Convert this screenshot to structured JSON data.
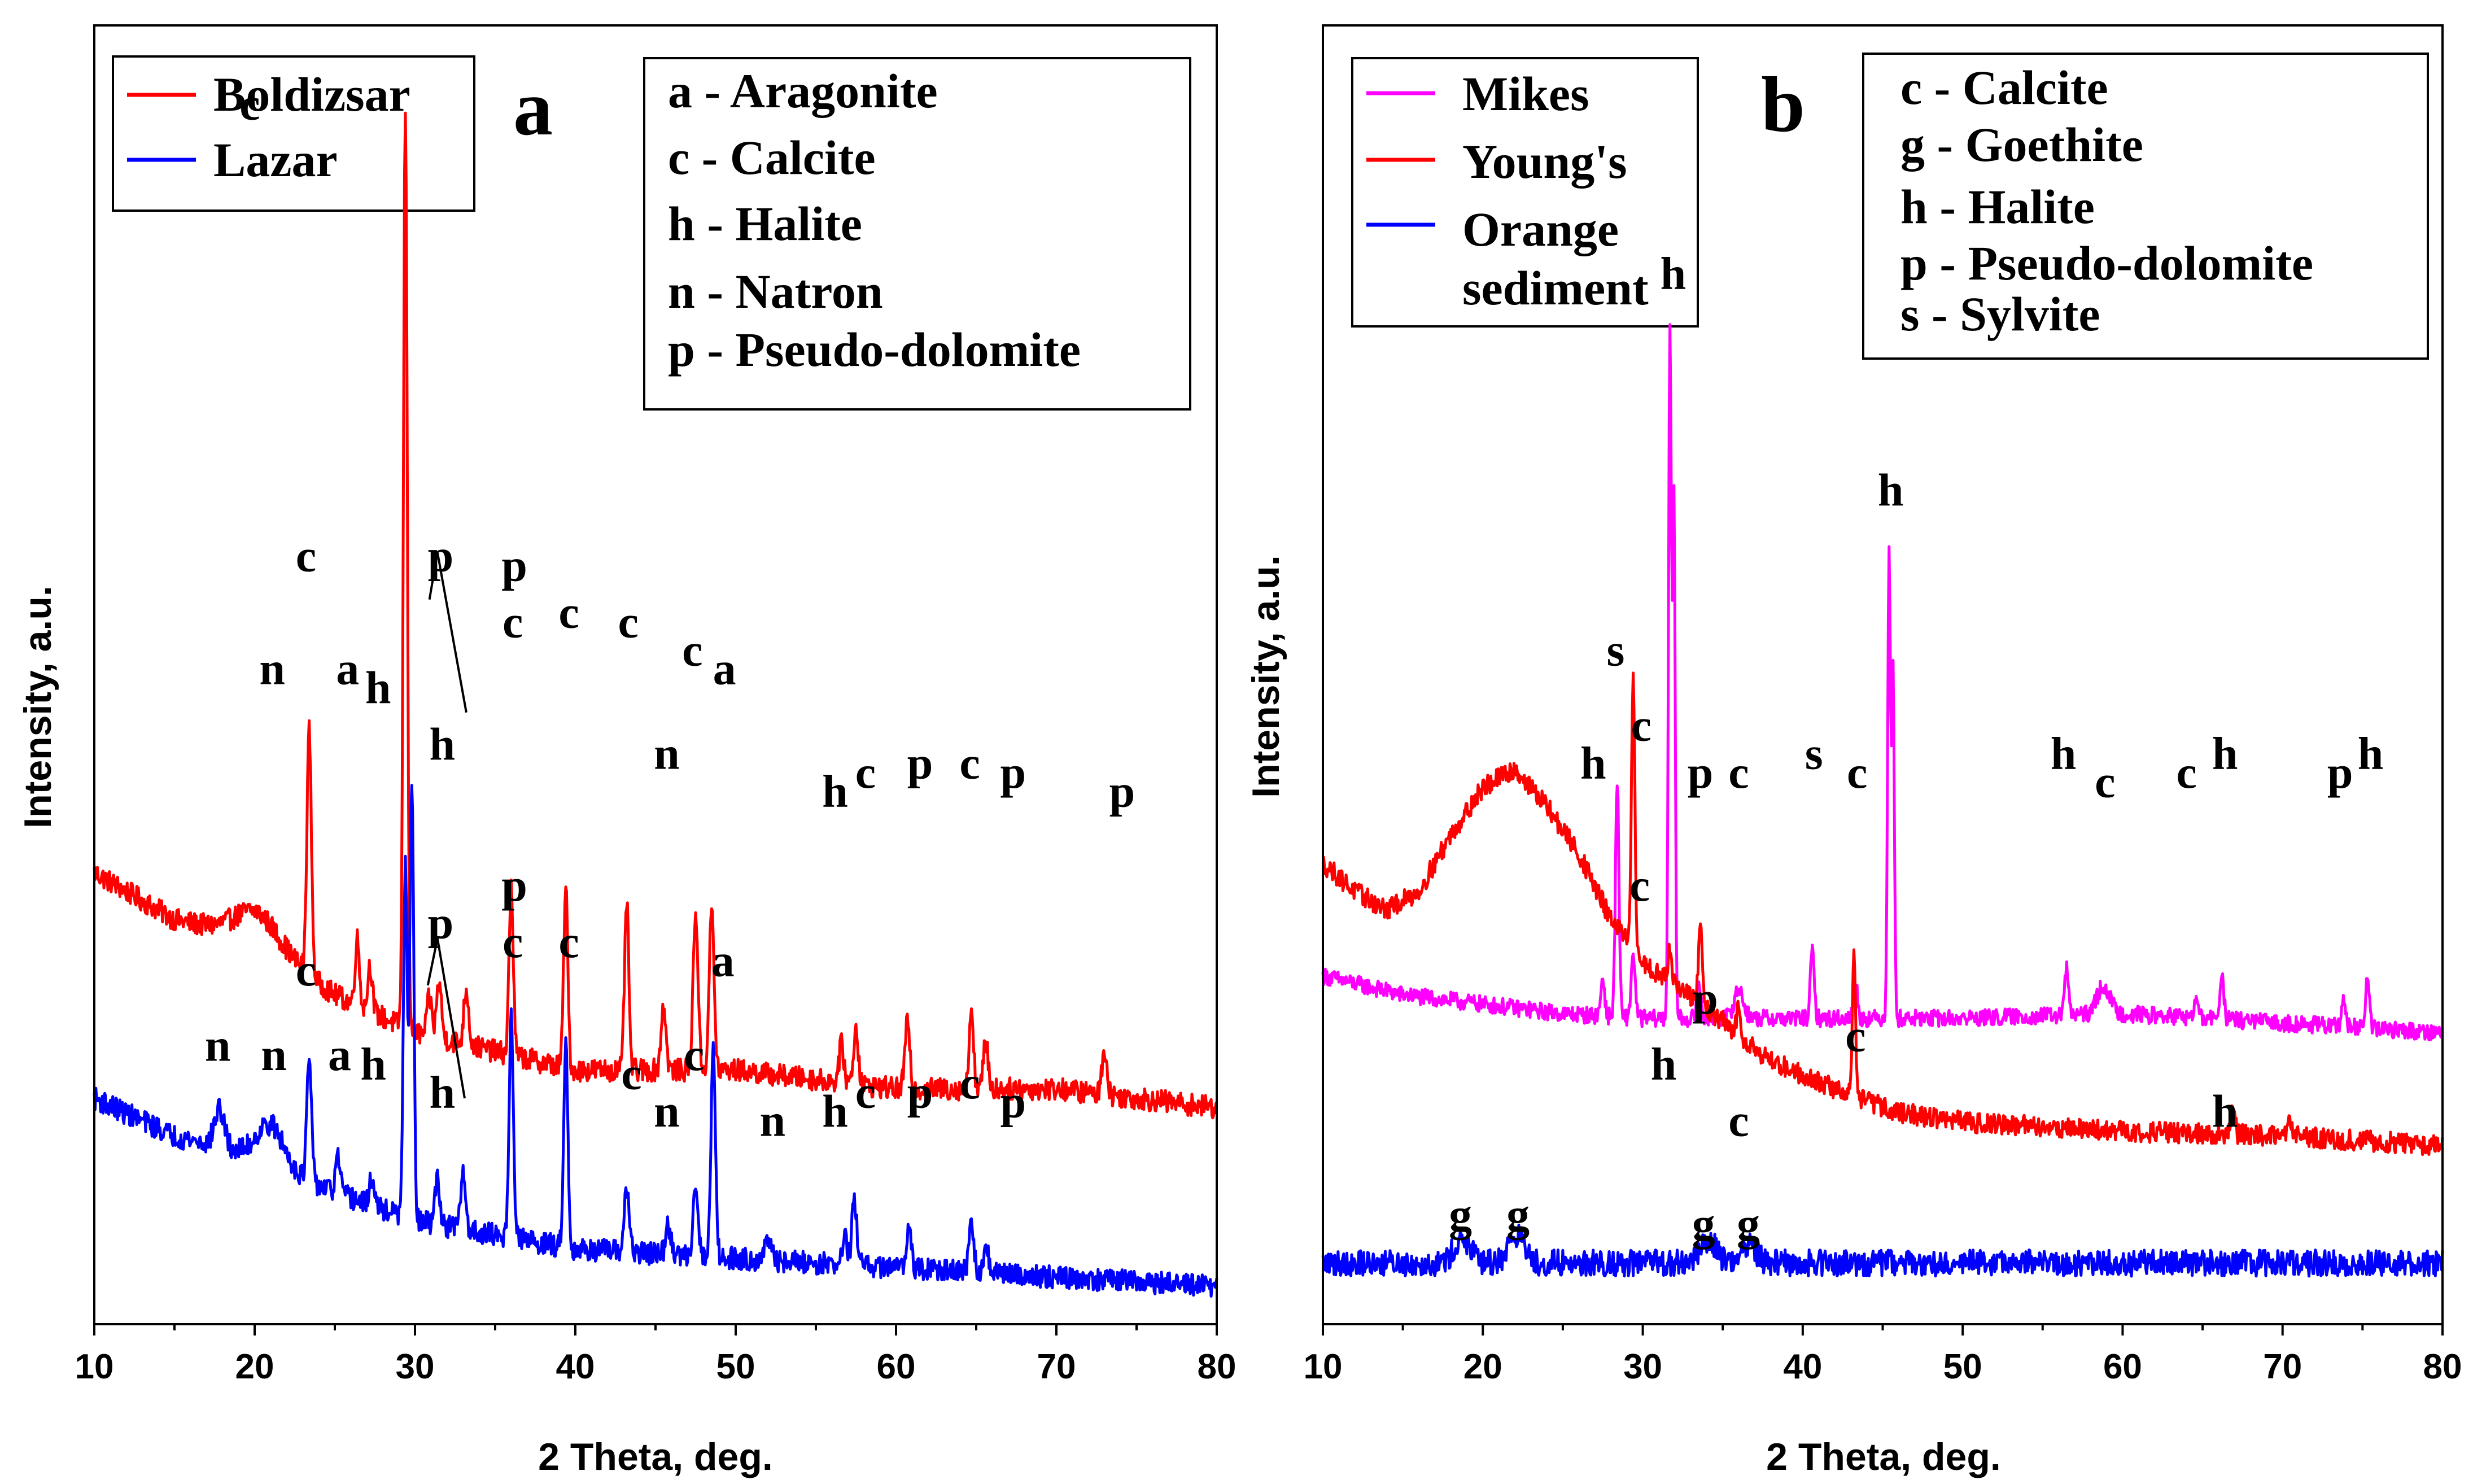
{
  "chart_data": [
    {
      "type": "line",
      "panel": "a",
      "xlabel": "2 Theta, deg.",
      "ylabel": "Intensity, a.u.",
      "xlim": [
        10,
        80
      ],
      "xticks": [
        10,
        20,
        30,
        40,
        50,
        60,
        70,
        80
      ],
      "yticks": "none",
      "legend": {
        "position": "top-left",
        "entries": [
          {
            "name": "Boldizsar",
            "color": "#ff0000"
          },
          {
            "name": "Lazar",
            "color": "#0000ff"
          }
        ]
      },
      "phase_key": [
        "a - Aragonite",
        "c - Calcite",
        "h - Halite",
        "n - Natron",
        "p - Pseudo-dolomite"
      ],
      "series": [
        {
          "name": "Boldizsar",
          "color": "#ff0000",
          "baseline": [
            [
              10,
              0.48
            ],
            [
              15,
              0.43
            ],
            [
              20,
              0.41
            ],
            [
              25,
              0.35
            ],
            [
              30,
              0.31
            ],
            [
              40,
              0.27
            ],
            [
              50,
              0.27
            ],
            [
              60,
              0.25
            ],
            [
              70,
              0.25
            ],
            [
              80,
              0.23
            ]
          ],
          "noise": 0.012,
          "peaks": [
            {
              "x": 20.2,
              "h": 0.03,
              "w": 1.4
            },
            {
              "x": 23.4,
              "h": 0.26,
              "w": 0.14
            },
            {
              "x": 26.4,
              "h": 0.07,
              "w": 0.14
            },
            {
              "x": 27.2,
              "h": 0.05,
              "w": 0.14
            },
            {
              "x": 29.4,
              "h": 0.98,
              "w": 0.12
            },
            {
              "x": 30.9,
              "h": 0.04,
              "w": 0.15
            },
            {
              "x": 31.5,
              "h": 0.06,
              "w": 0.15
            },
            {
              "x": 33.2,
              "h": 0.06,
              "w": 0.15
            },
            {
              "x": 36.0,
              "h": 0.18,
              "w": 0.13
            },
            {
              "x": 39.4,
              "h": 0.19,
              "w": 0.13
            },
            {
              "x": 43.2,
              "h": 0.18,
              "w": 0.13
            },
            {
              "x": 45.5,
              "h": 0.07,
              "w": 0.15
            },
            {
              "x": 47.5,
              "h": 0.17,
              "w": 0.15
            },
            {
              "x": 48.5,
              "h": 0.17,
              "w": 0.15
            },
            {
              "x": 56.6,
              "h": 0.04,
              "w": 0.15
            },
            {
              "x": 57.5,
              "h": 0.06,
              "w": 0.15
            },
            {
              "x": 60.7,
              "h": 0.07,
              "w": 0.15
            },
            {
              "x": 64.7,
              "h": 0.09,
              "w": 0.13
            },
            {
              "x": 65.6,
              "h": 0.05,
              "w": 0.15
            },
            {
              "x": 73.0,
              "h": 0.05,
              "w": 0.15
            }
          ]
        },
        {
          "name": "Lazar",
          "color": "#0000ff",
          "baseline": [
            [
              10,
              0.24
            ],
            [
              15,
              0.2
            ],
            [
              20,
              0.18
            ],
            [
              25,
              0.14
            ],
            [
              30,
              0.11
            ],
            [
              40,
              0.08
            ],
            [
              50,
              0.07
            ],
            [
              60,
              0.06
            ],
            [
              70,
              0.05
            ],
            [
              80,
              0.04
            ]
          ],
          "noise": 0.012,
          "peaks": [
            {
              "x": 17.8,
              "h": 0.04,
              "w": 0.3
            },
            {
              "x": 21.0,
              "h": 0.04,
              "w": 0.8
            },
            {
              "x": 23.4,
              "h": 0.13,
              "w": 0.14
            },
            {
              "x": 25.2,
              "h": 0.04,
              "w": 0.14
            },
            {
              "x": 27.3,
              "h": 0.03,
              "w": 0.14
            },
            {
              "x": 29.4,
              "h": 0.37,
              "w": 0.12
            },
            {
              "x": 29.8,
              "h": 0.47,
              "w": 0.12
            },
            {
              "x": 31.4,
              "h": 0.05,
              "w": 0.15
            },
            {
              "x": 33.0,
              "h": 0.06,
              "w": 0.15
            },
            {
              "x": 36.0,
              "h": 0.24,
              "w": 0.13
            },
            {
              "x": 39.4,
              "h": 0.22,
              "w": 0.13
            },
            {
              "x": 43.2,
              "h": 0.07,
              "w": 0.15
            },
            {
              "x": 45.8,
              "h": 0.03,
              "w": 0.15
            },
            {
              "x": 47.5,
              "h": 0.08,
              "w": 0.15
            },
            {
              "x": 48.6,
              "h": 0.22,
              "w": 0.14
            },
            {
              "x": 52.0,
              "h": 0.02,
              "w": 0.2
            },
            {
              "x": 56.8,
              "h": 0.03,
              "w": 0.15
            },
            {
              "x": 57.4,
              "h": 0.07,
              "w": 0.15
            },
            {
              "x": 60.8,
              "h": 0.05,
              "w": 0.15
            },
            {
              "x": 64.7,
              "h": 0.05,
              "w": 0.15
            },
            {
              "x": 65.6,
              "h": 0.03,
              "w": 0.15
            }
          ]
        }
      ],
      "annotations": [
        {
          "text": "c",
          "x": 19.7,
          "y": 1.28
        },
        {
          "text": "n",
          "x": 21.1,
          "y": 0.68
        },
        {
          "text": "c",
          "x": 23.2,
          "y": 0.8
        },
        {
          "text": "a",
          "x": 25.8,
          "y": 0.68
        },
        {
          "text": "h",
          "x": 27.7,
          "y": 0.66
        },
        {
          "text": "p",
          "x": 31.6,
          "y": 0.8
        },
        {
          "text": "h",
          "x": 31.7,
          "y": 0.6
        },
        {
          "text": "p",
          "x": 36.2,
          "y": 0.79
        },
        {
          "text": "c",
          "x": 36.1,
          "y": 0.73
        },
        {
          "text": "c",
          "x": 39.6,
          "y": 0.74
        },
        {
          "text": "c",
          "x": 43.3,
          "y": 0.73
        },
        {
          "text": "n",
          "x": 45.7,
          "y": 0.59
        },
        {
          "text": "c",
          "x": 47.3,
          "y": 0.7
        },
        {
          "text": "a",
          "x": 49.3,
          "y": 0.68
        },
        {
          "text": "h",
          "x": 56.2,
          "y": 0.55
        },
        {
          "text": "c",
          "x": 58.1,
          "y": 0.57
        },
        {
          "text": "p",
          "x": 61.5,
          "y": 0.58
        },
        {
          "text": "c",
          "x": 64.6,
          "y": 0.58
        },
        {
          "text": "p",
          "x": 67.3,
          "y": 0.57
        },
        {
          "text": "p",
          "x": 74.1,
          "y": 0.55
        },
        {
          "text": "p",
          "x": 31.6,
          "y": 0.41
        },
        {
          "text": "p",
          "x": 36.2,
          "y": 0.45
        },
        {
          "text": "n",
          "x": 17.7,
          "y": 0.28
        },
        {
          "text": "n",
          "x": 21.2,
          "y": 0.27
        },
        {
          "text": "c",
          "x": 23.2,
          "y": 0.36
        },
        {
          "text": "a",
          "x": 25.3,
          "y": 0.27
        },
        {
          "text": "h",
          "x": 27.4,
          "y": 0.26
        },
        {
          "text": "h",
          "x": 31.7,
          "y": 0.23
        },
        {
          "text": "c",
          "x": 36.1,
          "y": 0.39
        },
        {
          "text": "c",
          "x": 39.6,
          "y": 0.39
        },
        {
          "text": "c",
          "x": 43.5,
          "y": 0.25
        },
        {
          "text": "n",
          "x": 45.7,
          "y": 0.21
        },
        {
          "text": "c",
          "x": 47.4,
          "y": 0.27
        },
        {
          "text": "a",
          "x": 49.2,
          "y": 0.37
        },
        {
          "text": "n",
          "x": 52.3,
          "y": 0.2
        },
        {
          "text": "h",
          "x": 56.2,
          "y": 0.21
        },
        {
          "text": "c",
          "x": 58.1,
          "y": 0.23
        },
        {
          "text": "p",
          "x": 61.5,
          "y": 0.23
        },
        {
          "text": "c",
          "x": 64.6,
          "y": 0.24
        },
        {
          "text": "p",
          "x": 67.3,
          "y": 0.22
        }
      ],
      "brackets": [
        {
          "apex": [
            31.4,
            0.82
          ],
          "ends": [
            [
              30.9,
              0.77
            ],
            [
              33.2,
              0.65
            ]
          ]
        },
        {
          "apex": [
            31.4,
            0.41
          ],
          "ends": [
            [
              30.8,
              0.36
            ],
            [
              33.1,
              0.24
            ]
          ]
        }
      ]
    },
    {
      "type": "line",
      "panel": "b",
      "xlabel": "2 Theta, deg.",
      "ylabel": "Intensity, a.u.",
      "xlim": [
        10,
        80
      ],
      "xticks": [
        10,
        20,
        30,
        40,
        50,
        60,
        70,
        80
      ],
      "yticks": "none",
      "legend": {
        "position": "top-left",
        "entries": [
          {
            "name": "Mikes",
            "color": "#ff00ff"
          },
          {
            "name": "Young's",
            "color": "#ff0000"
          },
          {
            "name": "Orange sediment",
            "color": "#0000ff"
          }
        ]
      },
      "phase_key": [
        "c - Calcite",
        "g - Goethite",
        "h - Halite",
        "p - Pseudo-dolomite",
        "s - Sylvite"
      ],
      "series": [
        {
          "name": "Mikes",
          "color": "#ff00ff",
          "baseline": [
            [
              10,
              0.37
            ],
            [
              15,
              0.35
            ],
            [
              20,
              0.34
            ],
            [
              25,
              0.33
            ],
            [
              30,
              0.325
            ],
            [
              40,
              0.325
            ],
            [
              50,
              0.325
            ],
            [
              60,
              0.33
            ],
            [
              70,
              0.32
            ],
            [
              80,
              0.31
            ]
          ],
          "noise": 0.009,
          "peaks": [
            {
              "x": 27.5,
              "h": 0.04,
              "w": 0.12
            },
            {
              "x": 28.4,
              "h": 0.25,
              "w": 0.11
            },
            {
              "x": 29.4,
              "h": 0.07,
              "w": 0.12
            },
            {
              "x": 31.7,
              "h": 0.74,
              "w": 0.09
            },
            {
              "x": 31.95,
              "h": 0.55,
              "w": 0.08
            },
            {
              "x": 33.5,
              "h": 0.04,
              "w": 0.12
            },
            {
              "x": 36.0,
              "h": 0.03,
              "w": 0.3
            },
            {
              "x": 40.6,
              "h": 0.07,
              "w": 0.12
            },
            {
              "x": 43.3,
              "h": 0.04,
              "w": 0.12
            },
            {
              "x": 45.4,
              "h": 0.5,
              "w": 0.09
            },
            {
              "x": 45.65,
              "h": 0.37,
              "w": 0.08
            },
            {
              "x": 56.5,
              "h": 0.05,
              "w": 0.12
            },
            {
              "x": 58.8,
              "h": 0.03,
              "w": 0.4
            },
            {
              "x": 64.6,
              "h": 0.02,
              "w": 0.12
            },
            {
              "x": 66.2,
              "h": 0.05,
              "w": 0.12
            },
            {
              "x": 73.8,
              "h": 0.03,
              "w": 0.12
            },
            {
              "x": 75.3,
              "h": 0.05,
              "w": 0.12
            }
          ]
        },
        {
          "name": "Young's",
          "color": "#ff0000",
          "baseline": [
            [
              10,
              0.49
            ],
            [
              12,
              0.46
            ],
            [
              14,
              0.44
            ],
            [
              16,
              0.46
            ],
            [
              18,
              0.52
            ],
            [
              20,
              0.57
            ],
            [
              22,
              0.59
            ],
            [
              24,
              0.55
            ],
            [
              26,
              0.5
            ],
            [
              28,
              0.43
            ],
            [
              30,
              0.385
            ],
            [
              34,
              0.335
            ],
            [
              38,
              0.28
            ],
            [
              42,
              0.25
            ],
            [
              46,
              0.225
            ],
            [
              50,
              0.215
            ],
            [
              60,
              0.205
            ],
            [
              70,
              0.2
            ],
            [
              80,
              0.19
            ]
          ],
          "noise": 0.011,
          "peaks": [
            {
              "x": 29.4,
              "h": 0.3,
              "w": 0.1
            },
            {
              "x": 31.7,
              "h": 0.04,
              "w": 0.12
            },
            {
              "x": 33.6,
              "h": 0.09,
              "w": 0.11
            },
            {
              "x": 36.0,
              "h": 0.03,
              "w": 0.12
            },
            {
              "x": 43.2,
              "h": 0.15,
              "w": 0.1
            },
            {
              "x": 66.9,
              "h": 0.03,
              "w": 0.12
            },
            {
              "x": 70.5,
              "h": 0.02,
              "w": 0.12
            }
          ]
        },
        {
          "name": "Orange sediment",
          "color": "#0000ff",
          "baseline": [
            [
              10,
              0.065
            ],
            [
              20,
              0.065
            ],
            [
              30,
              0.065
            ],
            [
              40,
              0.065
            ],
            [
              50,
              0.065
            ],
            [
              60,
              0.065
            ],
            [
              70,
              0.065
            ],
            [
              80,
              0.065
            ]
          ],
          "noise": 0.014,
          "peaks": [
            {
              "x": 18.7,
              "h": 0.025,
              "w": 0.5
            },
            {
              "x": 22.1,
              "h": 0.03,
              "w": 0.5
            },
            {
              "x": 34.1,
              "h": 0.025,
              "w": 0.5
            },
            {
              "x": 36.6,
              "h": 0.02,
              "w": 0.5
            }
          ]
        }
      ],
      "annotations": [
        {
          "text": "h",
          "x": 31.9,
          "y": 1.1
        },
        {
          "text": "h",
          "x": 45.5,
          "y": 0.87
        },
        {
          "text": "s",
          "x": 28.3,
          "y": 0.7
        },
        {
          "text": "c",
          "x": 29.9,
          "y": 0.62
        },
        {
          "text": "h",
          "x": 26.9,
          "y": 0.58
        },
        {
          "text": "p",
          "x": 33.6,
          "y": 0.57
        },
        {
          "text": "c",
          "x": 36.0,
          "y": 0.57
        },
        {
          "text": "s",
          "x": 40.7,
          "y": 0.59
        },
        {
          "text": "c",
          "x": 43.4,
          "y": 0.57
        },
        {
          "text": "h",
          "x": 56.3,
          "y": 0.59
        },
        {
          "text": "c",
          "x": 58.9,
          "y": 0.56
        },
        {
          "text": "c",
          "x": 64.0,
          "y": 0.57
        },
        {
          "text": "h",
          "x": 66.4,
          "y": 0.59
        },
        {
          "text": "p",
          "x": 73.6,
          "y": 0.57
        },
        {
          "text": "h",
          "x": 75.5,
          "y": 0.59
        },
        {
          "text": "c",
          "x": 29.8,
          "y": 0.45
        },
        {
          "text": "h",
          "x": 31.3,
          "y": 0.26
        },
        {
          "text": "p",
          "x": 33.9,
          "y": 0.33
        },
        {
          "text": "c",
          "x": 36.0,
          "y": 0.2
        },
        {
          "text": "c",
          "x": 43.3,
          "y": 0.29
        },
        {
          "text": "h",
          "x": 66.4,
          "y": 0.21
        },
        {
          "text": "g",
          "x": 18.6,
          "y": 0.1
        },
        {
          "text": "g",
          "x": 22.2,
          "y": 0.1
        },
        {
          "text": "g",
          "x": 33.8,
          "y": 0.09
        },
        {
          "text": "g",
          "x": 36.6,
          "y": 0.09
        }
      ],
      "brackets": []
    }
  ]
}
